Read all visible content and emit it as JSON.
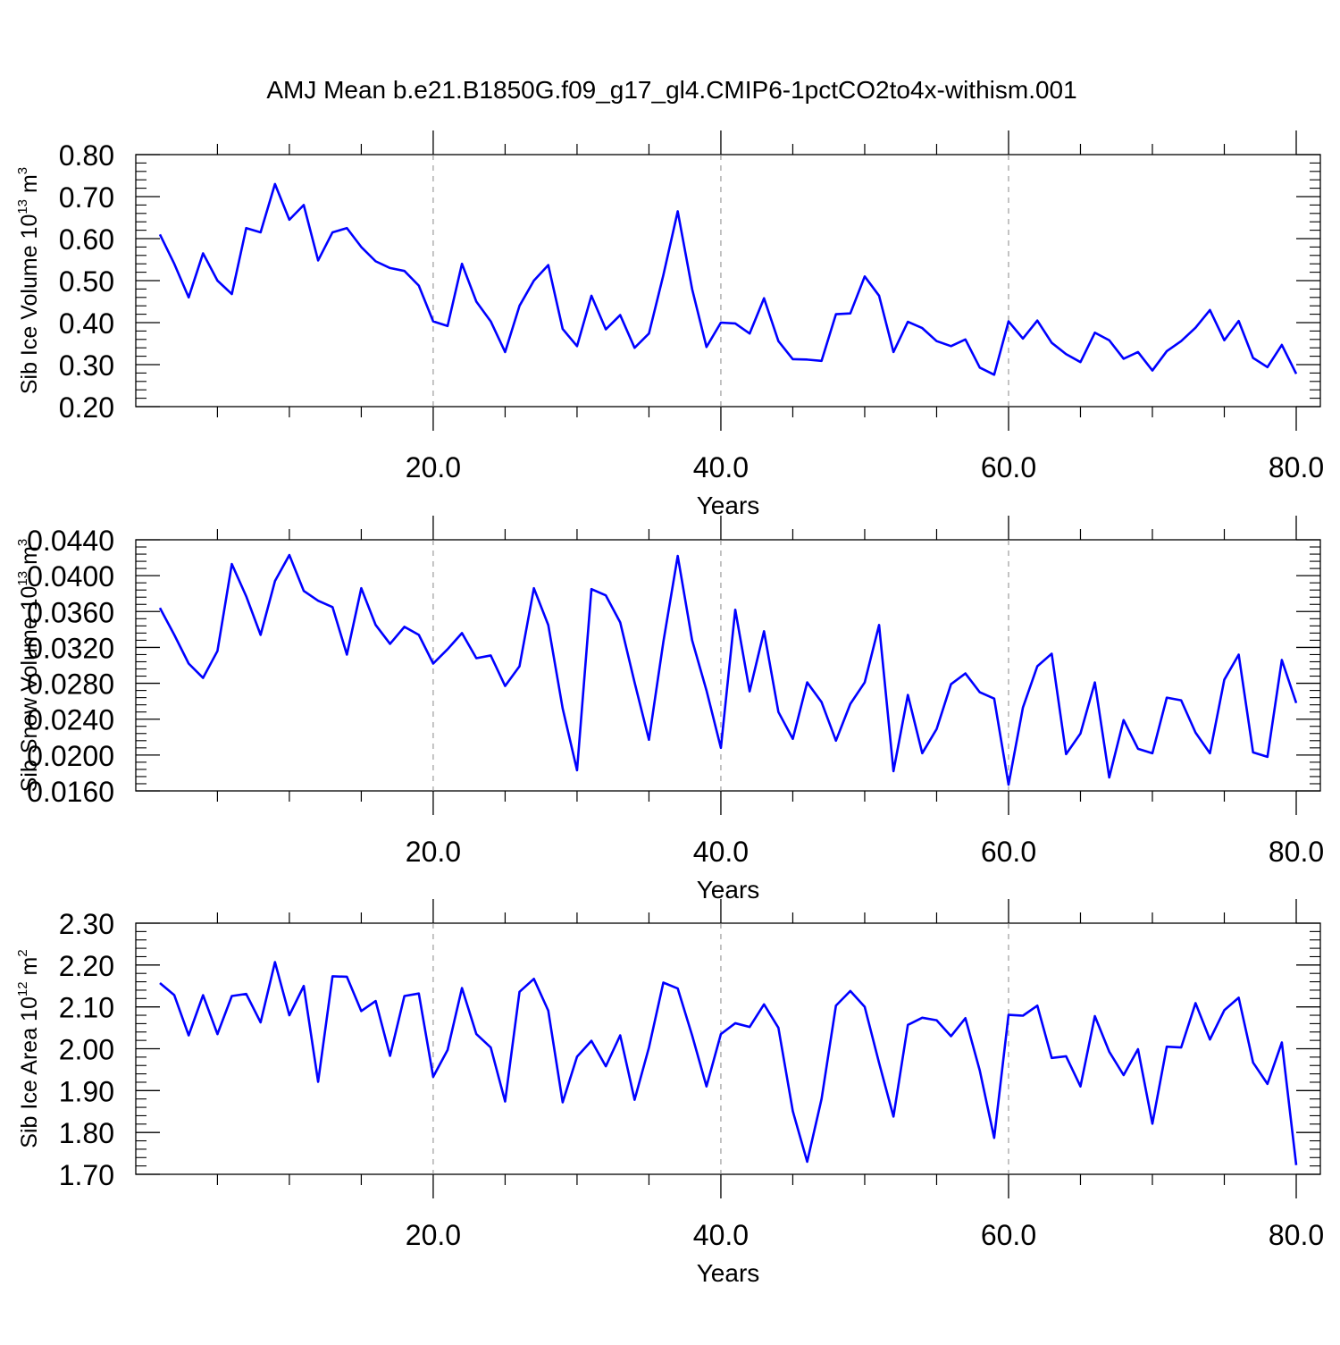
{
  "title": "AMJ Mean b.e21.B1850G.f09_g17_gl4.CMIP6-1pctCO2to4x-withism.001",
  "colors": {
    "line": "#0000ff",
    "axis": "#000000",
    "grid": "#888888"
  },
  "chart_data": [
    {
      "type": "line",
      "ylabel": {
        "text": "Sib Ice Volume 10",
        "exp": "13",
        "unit": " m",
        "unit_exp": "3"
      },
      "xlabel": "Years",
      "xlim": [
        1,
        80
      ],
      "ylim": [
        0.2,
        0.8
      ],
      "x_ticks": [
        "20.0",
        "40.0",
        "60.0",
        "80.0"
      ],
      "y_ticks": [
        "0.20",
        "0.30",
        "0.40",
        "0.50",
        "0.60",
        "0.70",
        "0.80"
      ],
      "grid": "vertical dashed at major x ticks",
      "series": [
        {
          "x_start": 1,
          "values": [
            0.61,
            0.54,
            0.46,
            0.565,
            0.5,
            0.468,
            0.625,
            0.615,
            0.73,
            0.645,
            0.68,
            0.548,
            0.615,
            0.625,
            0.58,
            0.546,
            0.53,
            0.523,
            0.488,
            0.403,
            0.392,
            0.54,
            0.45,
            0.403,
            0.33,
            0.44,
            0.5,
            0.537,
            0.385,
            0.344,
            0.464,
            0.384,
            0.418,
            0.34,
            0.374,
            0.513,
            0.665,
            0.48,
            0.342,
            0.4,
            0.398,
            0.374,
            0.458,
            0.356,
            0.313,
            0.312,
            0.309,
            0.42,
            0.422,
            0.51,
            0.464,
            0.33,
            0.402,
            0.387,
            0.356,
            0.344,
            0.36,
            0.293,
            0.276,
            0.403,
            0.362,
            0.405,
            0.352,
            0.325,
            0.306,
            0.376,
            0.358,
            0.314,
            0.33,
            0.286,
            0.332,
            0.356,
            0.388,
            0.43,
            0.358,
            0.404,
            0.316,
            0.294,
            0.347,
            0.278
          ]
        }
      ]
    },
    {
      "type": "line",
      "ylabel": {
        "text": "Sib Snow Volume 10",
        "exp": "13",
        "unit": " m",
        "unit_exp": "3"
      },
      "xlabel": "Years",
      "xlim": [
        1,
        80
      ],
      "ylim": [
        0.016,
        0.044
      ],
      "x_ticks": [
        "20.0",
        "40.0",
        "60.0",
        "80.0"
      ],
      "y_ticks": [
        "0.0160",
        "0.0200",
        "0.0240",
        "0.0280",
        "0.0320",
        "0.0360",
        "0.0400",
        "0.0440"
      ],
      "grid": "vertical dashed at major x ticks",
      "series": [
        {
          "x_start": 1,
          "values": [
            0.0364,
            0.0334,
            0.0302,
            0.0286,
            0.0316,
            0.0413,
            0.0377,
            0.0334,
            0.0394,
            0.0423,
            0.0383,
            0.0372,
            0.0365,
            0.0312,
            0.0386,
            0.0345,
            0.0324,
            0.0343,
            0.0334,
            0.0302,
            0.0318,
            0.0336,
            0.0308,
            0.0311,
            0.0277,
            0.0299,
            0.0386,
            0.0345,
            0.0252,
            0.0183,
            0.0385,
            0.0378,
            0.0348,
            0.0281,
            0.0217,
            0.0326,
            0.0422,
            0.0328,
            0.0272,
            0.0208,
            0.0362,
            0.0271,
            0.0338,
            0.0248,
            0.0218,
            0.0281,
            0.0259,
            0.0216,
            0.0257,
            0.0281,
            0.0345,
            0.0182,
            0.0267,
            0.0202,
            0.0229,
            0.0279,
            0.0291,
            0.027,
            0.0263,
            0.0167,
            0.0253,
            0.0299,
            0.0313,
            0.0201,
            0.0224,
            0.0281,
            0.0175,
            0.0239,
            0.0207,
            0.0202,
            0.0264,
            0.0261,
            0.0225,
            0.0202,
            0.0284,
            0.0312,
            0.0203,
            0.0198,
            0.0306,
            0.0258
          ]
        }
      ]
    },
    {
      "type": "line",
      "ylabel": {
        "text": "Sib Ice Area 10",
        "exp": "12",
        "unit": " m",
        "unit_exp": "2"
      },
      "xlabel": "Years",
      "xlim": [
        1,
        80
      ],
      "ylim": [
        1.7,
        2.3
      ],
      "x_ticks": [
        "20.0",
        "40.0",
        "60.0",
        "80.0"
      ],
      "y_ticks": [
        "1.70",
        "1.80",
        "1.90",
        "2.00",
        "2.10",
        "2.20",
        "2.30"
      ],
      "grid": "vertical dashed at major x ticks",
      "series": [
        {
          "x_start": 1,
          "values": [
            2.157,
            2.128,
            2.032,
            2.128,
            2.035,
            2.126,
            2.131,
            2.063,
            2.207,
            2.08,
            2.15,
            1.921,
            2.173,
            2.172,
            2.09,
            2.114,
            1.983,
            2.126,
            2.132,
            1.933,
            1.997,
            2.145,
            2.035,
            2.003,
            1.874,
            2.136,
            2.167,
            2.091,
            1.872,
            1.981,
            2.019,
            1.958,
            2.032,
            1.878,
            2.003,
            2.158,
            2.144,
            2.032,
            1.91,
            2.035,
            2.061,
            2.052,
            2.106,
            2.05,
            1.851,
            1.73,
            1.88,
            2.103,
            2.138,
            2.1,
            1.966,
            1.838,
            2.057,
            2.074,
            2.068,
            2.03,
            2.073,
            1.948,
            1.787,
            2.081,
            2.079,
            2.103,
            1.978,
            1.982,
            1.91,
            2.078,
            1.993,
            1.937,
            1.999,
            1.821,
            2.005,
            2.003,
            2.109,
            2.022,
            2.092,
            2.122,
            1.967,
            1.916,
            2.015,
            1.722
          ]
        }
      ]
    }
  ]
}
